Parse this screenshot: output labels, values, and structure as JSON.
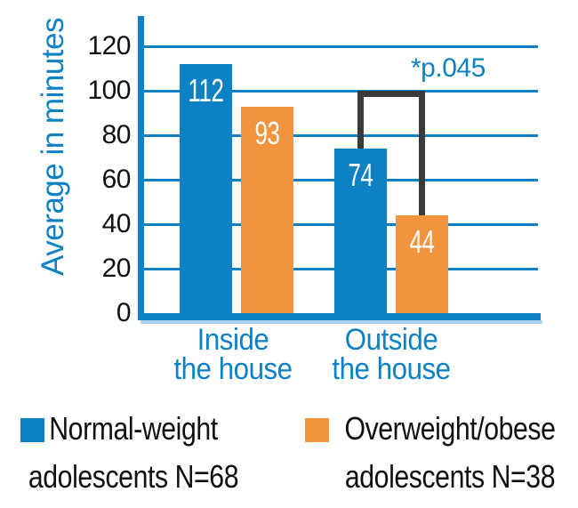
{
  "colors": {
    "axis_blue": "#0d81c4",
    "bar_blue": "#0d81c4",
    "bar_orange": "#f2943e",
    "bracket_gray": "#3a3a3a",
    "baseline_shadow": "#aad4ee",
    "text_black": "#101010",
    "value_label_white": "#ffffff",
    "background": "#ffffff"
  },
  "chart_data": {
    "type": "bar",
    "title": "",
    "ylabel": "Average in minutes",
    "xlabel": "",
    "ylim": [
      0,
      120
    ],
    "yticks": [
      0,
      20,
      40,
      60,
      80,
      100,
      120
    ],
    "grid": "horizontal blue gridlines at every 20 units",
    "legend_position": "bottom",
    "categories": [
      "Inside\nthe house",
      "Outside\nthe house"
    ],
    "series": [
      {
        "name": "Normal-weight\nadolescents N=68",
        "color": "#0d81c4",
        "values": [
          112,
          74
        ]
      },
      {
        "name": "Overweight/obese\nadolescents N=38",
        "color": "#f2943e",
        "values": [
          93,
          44
        ]
      }
    ],
    "annotation": {
      "text": "*p.045",
      "category_index": 1,
      "level_value": 100,
      "connects_series": [
        0,
        1
      ]
    }
  }
}
